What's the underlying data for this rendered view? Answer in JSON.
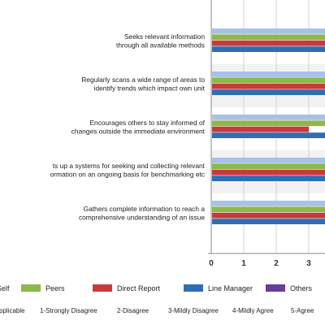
{
  "chart_data": {
    "type": "bar",
    "orientation": "horizontal",
    "categories": [
      [
        "Seeks relevant information",
        "through all available methods"
      ],
      [
        "Regularly scans a wide range of areas to",
        "identify trends which impact own unit"
      ],
      [
        "Encourages others to stay informed of",
        "changes outside the immediate environment"
      ],
      [
        "ts up a systems for seeking and collecting relevant",
        "ormation on an ongoing basis for benchmarking etc"
      ],
      [
        "Gathers complete information to reach a",
        "comprehensive understanding of an issue"
      ]
    ],
    "series": [
      {
        "name": "Self",
        "color": "#a7c2e6",
        "values": [
          4,
          4,
          4,
          4,
          4
        ]
      },
      {
        "name": "Peers",
        "color": "#8db84a",
        "values": [
          4,
          4,
          4,
          4,
          4
        ]
      },
      {
        "name": "Direct Report",
        "color": "#c8393b",
        "values": [
          4,
          4,
          3,
          4,
          4
        ]
      },
      {
        "name": "Line Manager",
        "color": "#2f6db5",
        "values": [
          4,
          4,
          4,
          4,
          4
        ]
      },
      {
        "name": "Others",
        "color": "#6a3d9a",
        "values": [
          0,
          0,
          0,
          0,
          0
        ]
      }
    ],
    "xlim": [
      0,
      4
    ],
    "x_ticks": [
      "0",
      "1",
      "2",
      "3"
    ],
    "grid": true,
    "legend_placement": "bottom",
    "scale_legend": [
      "pplicable",
      "1-Strongly Disagree",
      "2-Disagree",
      "3-Mildly Disagree",
      "4-Mildly Agree",
      "5-Agree"
    ]
  }
}
